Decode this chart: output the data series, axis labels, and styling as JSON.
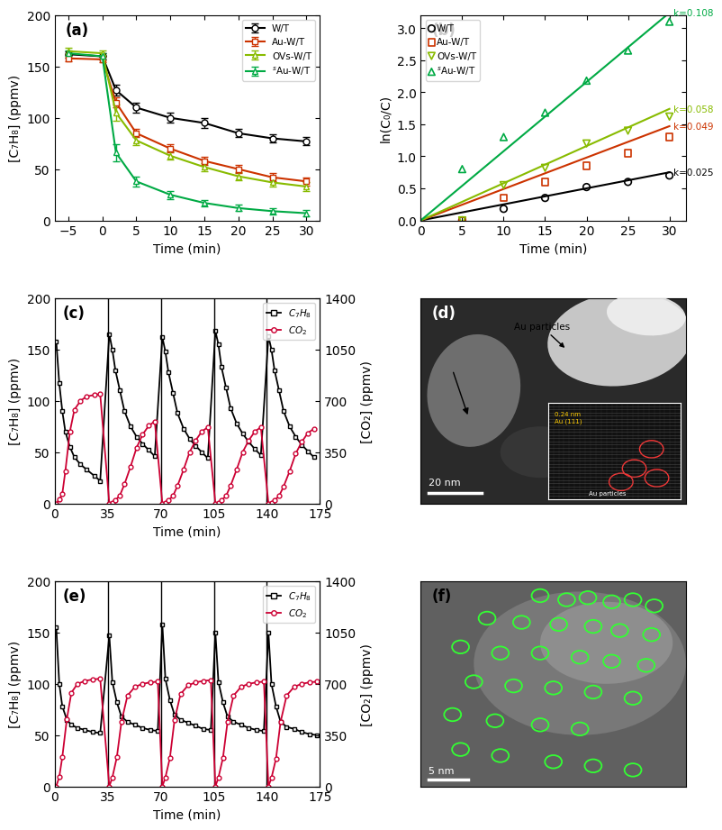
{
  "panel_a": {
    "title": "(a)",
    "xlabel": "Time (min)",
    "ylabel": "[C₇H₈] (ppmv)",
    "ylim": [
      0,
      200
    ],
    "xlim": [
      -7,
      32
    ],
    "xticks": [
      -5,
      0,
      5,
      10,
      15,
      20,
      25,
      30
    ],
    "yticks": [
      0,
      50,
      100,
      150,
      200
    ],
    "series": {
      "W/T": {
        "color": "#000000",
        "marker": "o",
        "linestyle": "-",
        "x": [
          -5,
          0,
          2,
          5,
          10,
          15,
          20,
          25,
          30
        ],
        "y": [
          162,
          160,
          127,
          110,
          100,
          95,
          85,
          80,
          77
        ],
        "yerr": [
          3,
          3,
          5,
          5,
          5,
          5,
          4,
          4,
          4
        ]
      },
      "Au-W/T": {
        "color": "#cc3300",
        "marker": "s",
        "linestyle": "-",
        "x": [
          -5,
          0,
          2,
          5,
          10,
          15,
          20,
          25,
          30
        ],
        "y": [
          158,
          157,
          115,
          85,
          70,
          58,
          50,
          42,
          38
        ],
        "yerr": [
          3,
          3,
          5,
          4,
          4,
          4,
          4,
          4,
          4
        ]
      },
      "OVs-W/T": {
        "color": "#88bb00",
        "marker": "^",
        "linestyle": "-",
        "x": [
          -5,
          0,
          2,
          5,
          10,
          15,
          20,
          25,
          30
        ],
        "y": [
          165,
          163,
          105,
          78,
          63,
          52,
          43,
          37,
          33
        ],
        "yerr": [
          3,
          3,
          8,
          5,
          4,
          4,
          4,
          4,
          4
        ]
      },
      "sAu-W/T": {
        "color": "#00aa44",
        "marker": "^",
        "linestyle": "-",
        "x": [
          -5,
          0,
          2,
          5,
          10,
          15,
          20,
          25,
          30
        ],
        "y": [
          163,
          160,
          66,
          38,
          25,
          17,
          12,
          9,
          7
        ],
        "yerr": [
          3,
          3,
          8,
          5,
          4,
          3,
          3,
          3,
          3
        ]
      }
    }
  },
  "panel_b": {
    "title": "(b)",
    "xlabel": "Time (min)",
    "ylabel": "ln(C₀/C)",
    "ylim": [
      0,
      3.2
    ],
    "xlim": [
      0,
      32
    ],
    "xticks": [
      0,
      5,
      10,
      15,
      20,
      25,
      30
    ],
    "yticks": [
      0.0,
      0.5,
      1.0,
      1.5,
      2.0,
      2.5,
      3.0
    ],
    "series": {
      "W/T": {
        "color": "#000000",
        "marker": "o",
        "x": [
          5,
          10,
          15,
          20,
          25,
          30
        ],
        "y": [
          0.0,
          0.18,
          0.35,
          0.52,
          0.6,
          0.7
        ],
        "k": 0.025
      },
      "Au-W/T": {
        "color": "#cc3300",
        "marker": "s",
        "x": [
          5,
          10,
          15,
          20,
          25,
          30
        ],
        "y": [
          0.0,
          0.35,
          0.6,
          0.85,
          1.05,
          1.3
        ],
        "k": 0.049
      },
      "OVs-W/T": {
        "color": "#88bb00",
        "marker": "v",
        "x": [
          5,
          10,
          15,
          20,
          25,
          30
        ],
        "y": [
          0.0,
          0.55,
          0.82,
          1.2,
          1.4,
          1.62
        ],
        "k": 0.058
      },
      "sAu-W/T": {
        "color": "#00aa44",
        "marker": "^",
        "x": [
          5,
          10,
          15,
          20,
          25,
          30
        ],
        "y": [
          0.8,
          1.3,
          1.68,
          2.18,
          2.65,
          3.1
        ],
        "k": 0.108
      }
    }
  },
  "panel_c": {
    "title": "(c)",
    "xlabel": "Time (min)",
    "ylabel_left": "[C₇H₈] (ppmv)",
    "ylabel_right": "[CO₂] (ppmv)",
    "ylim_left": [
      0,
      200
    ],
    "ylim_right": [
      0,
      1400
    ],
    "xlim": [
      0,
      175
    ],
    "xticks": [
      0,
      35,
      70,
      105,
      140,
      175
    ],
    "yticks_left": [
      0,
      50,
      100,
      150,
      200
    ],
    "yticks_right": [
      0,
      350,
      700,
      1050,
      1400
    ],
    "c7h8_x": [
      1,
      3,
      5,
      7,
      10,
      13,
      17,
      21,
      26,
      30,
      36,
      38,
      40,
      43,
      46,
      50,
      54,
      58,
      62,
      66,
      71,
      73,
      75,
      78,
      81,
      85,
      89,
      93,
      97,
      101,
      106,
      108,
      110,
      113,
      116,
      120,
      124,
      128,
      132,
      136,
      141,
      143,
      145,
      148,
      151,
      155,
      159,
      163,
      167,
      171
    ],
    "c7h8_y": [
      158,
      117,
      90,
      70,
      55,
      45,
      38,
      33,
      27,
      22,
      165,
      150,
      130,
      110,
      90,
      75,
      65,
      58,
      52,
      46,
      162,
      148,
      128,
      108,
      88,
      73,
      63,
      56,
      50,
      44,
      168,
      155,
      133,
      113,
      93,
      78,
      68,
      60,
      53,
      47,
      163,
      150,
      130,
      110,
      90,
      75,
      65,
      57,
      51,
      45
    ],
    "co2_x": [
      1,
      3,
      5,
      7,
      10,
      13,
      17,
      21,
      26,
      30,
      36,
      38,
      40,
      43,
      46,
      50,
      54,
      58,
      62,
      66,
      71,
      73,
      75,
      78,
      81,
      85,
      89,
      93,
      97,
      101,
      106,
      108,
      110,
      113,
      116,
      120,
      124,
      128,
      132,
      136,
      141,
      143,
      145,
      148,
      151,
      155,
      159,
      163,
      167,
      171
    ],
    "co2_y": [
      0,
      25,
      65,
      220,
      490,
      640,
      700,
      730,
      740,
      745,
      0,
      5,
      20,
      55,
      130,
      250,
      380,
      470,
      530,
      560,
      0,
      5,
      20,
      50,
      120,
      230,
      350,
      430,
      490,
      520,
      0,
      5,
      20,
      50,
      120,
      230,
      350,
      430,
      490,
      520,
      0,
      5,
      20,
      50,
      115,
      220,
      340,
      420,
      480,
      510
    ]
  },
  "panel_e": {
    "title": "(e)",
    "xlabel": "Time (min)",
    "ylabel_left": "[C₇H₈] (ppmv)",
    "ylabel_right": "[CO₂] (ppmv)",
    "ylim_left": [
      0,
      200
    ],
    "ylim_right": [
      0,
      1400
    ],
    "xlim": [
      0,
      175
    ],
    "xticks": [
      0,
      35,
      70,
      105,
      140,
      175
    ],
    "yticks_left": [
      0,
      50,
      100,
      150,
      200
    ],
    "yticks_right": [
      0,
      350,
      700,
      1050,
      1400
    ],
    "c7h8_x": [
      1,
      3,
      5,
      8,
      11,
      15,
      20,
      25,
      30,
      36,
      38,
      41,
      44,
      48,
      53,
      58,
      63,
      68,
      71,
      73,
      76,
      79,
      83,
      88,
      93,
      98,
      103,
      106,
      108,
      111,
      114,
      118,
      123,
      128,
      133,
      138,
      141,
      143,
      146,
      149,
      153,
      158,
      163,
      168,
      173
    ],
    "c7h8_y": [
      155,
      100,
      78,
      65,
      60,
      57,
      55,
      53,
      52,
      147,
      102,
      82,
      68,
      63,
      60,
      57,
      55,
      54,
      158,
      105,
      84,
      70,
      65,
      62,
      59,
      56,
      55,
      150,
      102,
      82,
      68,
      63,
      60,
      57,
      55,
      54,
      150,
      100,
      78,
      63,
      58,
      56,
      53,
      51,
      50
    ],
    "co2_x": [
      1,
      3,
      5,
      8,
      11,
      15,
      20,
      25,
      30,
      36,
      38,
      41,
      44,
      48,
      53,
      58,
      63,
      68,
      71,
      73,
      76,
      79,
      83,
      88,
      93,
      98,
      103,
      106,
      108,
      111,
      114,
      118,
      123,
      128,
      133,
      138,
      141,
      143,
      146,
      149,
      153,
      158,
      163,
      168,
      173
    ],
    "co2_y": [
      0,
      65,
      200,
      460,
      640,
      700,
      720,
      730,
      735,
      0,
      60,
      200,
      440,
      620,
      680,
      700,
      710,
      715,
      0,
      60,
      195,
      450,
      630,
      690,
      710,
      720,
      725,
      0,
      60,
      195,
      440,
      620,
      680,
      700,
      710,
      715,
      0,
      58,
      190,
      440,
      620,
      680,
      700,
      710,
      715
    ]
  },
  "bg_color": "#ffffff"
}
